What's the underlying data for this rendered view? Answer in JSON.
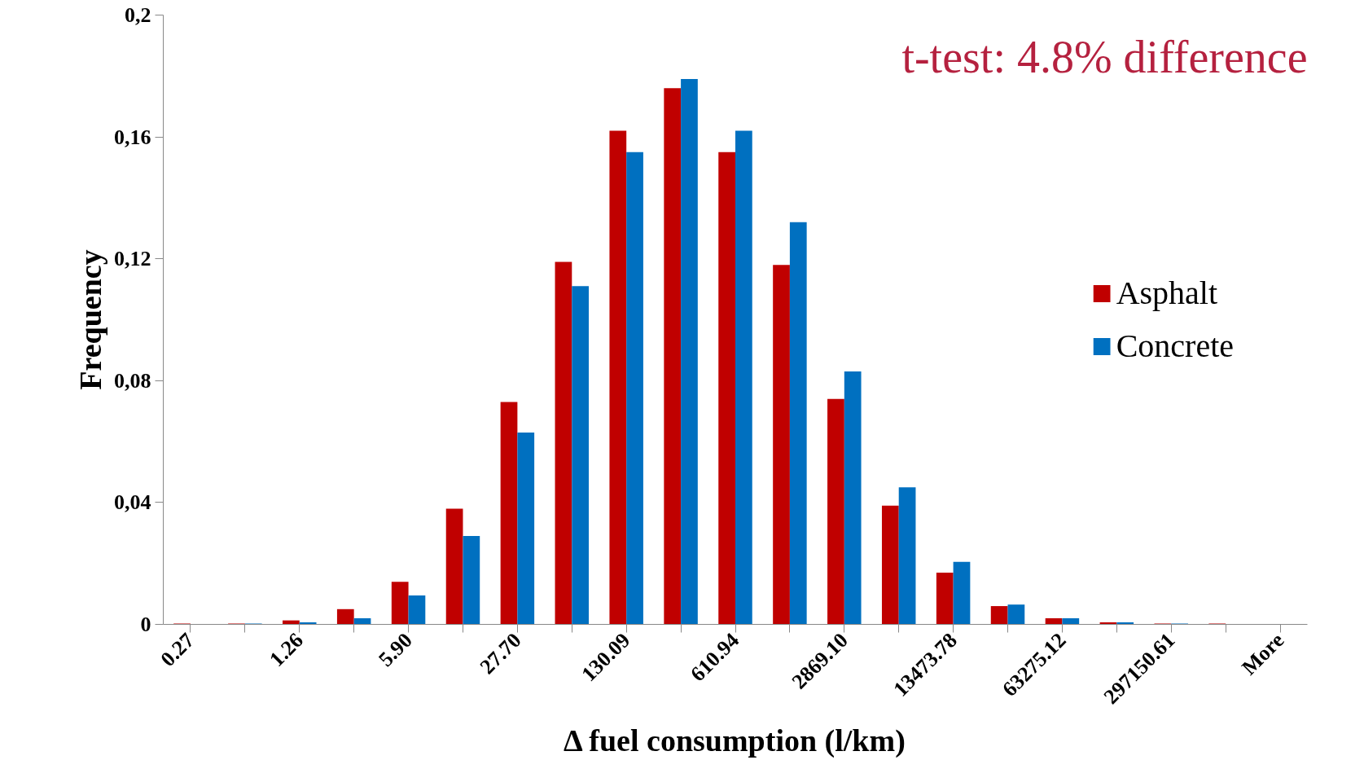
{
  "chart_data": {
    "type": "bar",
    "xlabel": "Δ fuel consumption (l/km)",
    "ylabel": "Frequency",
    "categories": [
      "0.27",
      null,
      "1.26",
      null,
      "5.90",
      null,
      "27.70",
      null,
      "130.09",
      null,
      "610.94",
      null,
      "2869.10",
      null,
      "13473.78",
      null,
      "63275.12",
      null,
      "297150.61",
      null,
      "More"
    ],
    "series": [
      {
        "name": "Asphalt",
        "color": "#c00000",
        "values": [
          0.0003,
          0.0003,
          0.0013,
          0.005,
          0.014,
          0.038,
          0.073,
          0.119,
          0.162,
          0.176,
          0.155,
          0.118,
          0.074,
          0.039,
          0.017,
          0.006,
          0.002,
          0.0007,
          0.0003,
          0.0003,
          0
        ]
      },
      {
        "name": "Concrete",
        "color": "#0070c0",
        "values": [
          0,
          0.0003,
          0.0007,
          0.002,
          0.0095,
          0.029,
          0.063,
          0.111,
          0.155,
          0.179,
          0.162,
          0.132,
          0.083,
          0.045,
          0.0205,
          0.0065,
          0.002,
          0.0007,
          0.0003,
          0,
          0
        ]
      }
    ],
    "ylim": [
      0,
      0.2
    ],
    "yticks": [
      0,
      {
        "value": 0.04,
        "label": "0,04"
      },
      {
        "value": 0.08,
        "label": "0,08"
      },
      {
        "value": 0.12,
        "label": "0,12"
      },
      {
        "value": 0.16,
        "label": "0,16"
      },
      {
        "value": 0.2,
        "label": "0,2"
      }
    ],
    "annotations": [
      "t-test: 4.8% difference"
    ],
    "legend": "right",
    "grid": false
  }
}
